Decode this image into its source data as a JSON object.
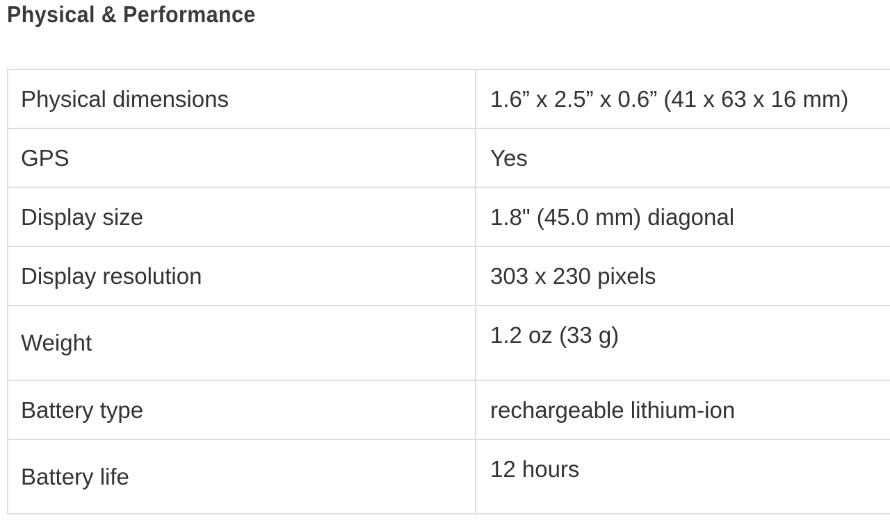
{
  "header": {
    "title": "Physical & Performance"
  },
  "table": {
    "rows": [
      [
        "Physical dimensions",
        "1.6” x 2.5” x 0.6” (41 x 63 x 16 mm)"
      ],
      [
        "GPS",
        "Yes"
      ],
      [
        "Display size",
        "1.8\" (45.0 mm) diagonal"
      ],
      [
        "Display resolution",
        "303 x 230 pixels"
      ],
      [
        "Weight",
        "1.2 oz (33 g)"
      ],
      [
        "Battery type",
        "rechargeable lithium-ion"
      ],
      [
        "Battery life",
        "12 hours"
      ]
    ]
  }
}
